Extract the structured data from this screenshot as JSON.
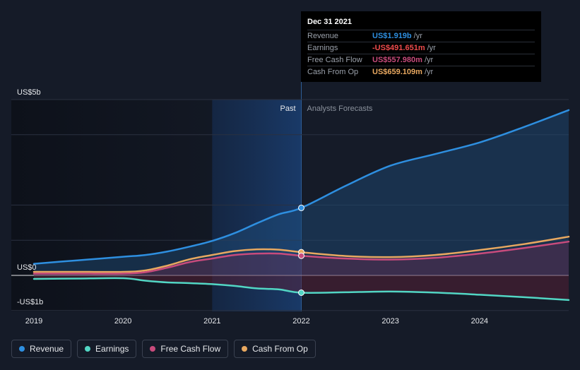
{
  "tooltip": {
    "date": "Dec 31 2021",
    "rows": [
      {
        "name": "Revenue",
        "value": "US$1.919b",
        "unit": "/yr",
        "color": "#2e8fe0"
      },
      {
        "name": "Earnings",
        "value": "-US$491.651m",
        "unit": "/yr",
        "color": "#ef4b4b"
      },
      {
        "name": "Free Cash Flow",
        "value": "US$557.980m",
        "unit": "/yr",
        "color": "#c84b7c"
      },
      {
        "name": "Cash From Op",
        "value": "US$659.109m",
        "unit": "/yr",
        "color": "#e8a860"
      }
    ]
  },
  "legend": [
    {
      "name": "Revenue",
      "color": "#2e8fe0"
    },
    {
      "name": "Earnings",
      "color": "#52d6c4"
    },
    {
      "name": "Free Cash Flow",
      "color": "#c84b7c"
    },
    {
      "name": "Cash From Op",
      "color": "#e8a860"
    }
  ],
  "chart_data": {
    "type": "line",
    "y_unit": "USD billions",
    "ylim": [
      -1,
      5
    ],
    "xlim": [
      2019,
      2025
    ],
    "y_tick_labels": [
      {
        "value": 5,
        "label": "US$5b"
      },
      {
        "value": 0,
        "label": "US$0"
      },
      {
        "value": -1,
        "label": "-US$1b"
      }
    ],
    "x_tick_labels": [
      "2019",
      "2020",
      "2021",
      "2022",
      "2023",
      "2024"
    ],
    "x_ticks": [
      2019,
      2020,
      2021,
      2022,
      2023,
      2024
    ],
    "past_label": "Past",
    "forecast_label": "Analysts Forecasts",
    "past_end": 2022,
    "highlight_start": 2021,
    "series": [
      {
        "name": "Revenue",
        "color": "#2e8fe0",
        "area": true,
        "points": [
          [
            2019,
            0.33
          ],
          [
            2019.5,
            0.43
          ],
          [
            2020,
            0.53
          ],
          [
            2020.25,
            0.58
          ],
          [
            2020.5,
            0.68
          ],
          [
            2020.75,
            0.82
          ],
          [
            2021,
            0.98
          ],
          [
            2021.25,
            1.2
          ],
          [
            2021.5,
            1.48
          ],
          [
            2021.75,
            1.74
          ],
          [
            2022,
            1.919
          ],
          [
            2022.5,
            2.55
          ],
          [
            2023,
            3.12
          ],
          [
            2023.5,
            3.45
          ],
          [
            2024,
            3.78
          ],
          [
            2024.5,
            4.22
          ],
          [
            2025,
            4.7
          ]
        ]
      },
      {
        "name": "Cash From Op",
        "color": "#e8a860",
        "area": false,
        "points": [
          [
            2019,
            0.1
          ],
          [
            2019.5,
            0.1
          ],
          [
            2020,
            0.1
          ],
          [
            2020.25,
            0.14
          ],
          [
            2020.5,
            0.28
          ],
          [
            2020.75,
            0.46
          ],
          [
            2021,
            0.58
          ],
          [
            2021.25,
            0.69
          ],
          [
            2021.5,
            0.74
          ],
          [
            2021.75,
            0.73
          ],
          [
            2022,
            0.659
          ],
          [
            2022.5,
            0.55
          ],
          [
            2023,
            0.52
          ],
          [
            2023.5,
            0.58
          ],
          [
            2024,
            0.72
          ],
          [
            2024.5,
            0.89
          ],
          [
            2025,
            1.1
          ]
        ]
      },
      {
        "name": "Free Cash Flow",
        "color": "#c84b7c",
        "area": true,
        "points": [
          [
            2019,
            0.05
          ],
          [
            2019.5,
            0.05
          ],
          [
            2020,
            0.05
          ],
          [
            2020.25,
            0.09
          ],
          [
            2020.5,
            0.22
          ],
          [
            2020.75,
            0.38
          ],
          [
            2021,
            0.48
          ],
          [
            2021.25,
            0.58
          ],
          [
            2021.5,
            0.62
          ],
          [
            2021.75,
            0.62
          ],
          [
            2022,
            0.558
          ],
          [
            2022.5,
            0.48
          ],
          [
            2023,
            0.45
          ],
          [
            2023.5,
            0.5
          ],
          [
            2024,
            0.62
          ],
          [
            2024.5,
            0.78
          ],
          [
            2025,
            0.96
          ]
        ]
      },
      {
        "name": "Earnings",
        "color": "#52d6c4",
        "area": true,
        "points": [
          [
            2019,
            -0.1
          ],
          [
            2019.5,
            -0.09
          ],
          [
            2020,
            -0.08
          ],
          [
            2020.25,
            -0.15
          ],
          [
            2020.5,
            -0.2
          ],
          [
            2020.75,
            -0.22
          ],
          [
            2021,
            -0.25
          ],
          [
            2021.25,
            -0.3
          ],
          [
            2021.5,
            -0.37
          ],
          [
            2021.75,
            -0.4
          ],
          [
            2022,
            -0.492
          ],
          [
            2022.5,
            -0.48
          ],
          [
            2023,
            -0.46
          ],
          [
            2023.5,
            -0.49
          ],
          [
            2024,
            -0.55
          ],
          [
            2024.5,
            -0.62
          ],
          [
            2025,
            -0.7
          ]
        ]
      }
    ],
    "markers": [
      {
        "series": "Revenue",
        "x": 2022,
        "y": 1.919
      },
      {
        "series": "Cash From Op",
        "x": 2022,
        "y": 0.659
      },
      {
        "series": "Free Cash Flow",
        "x": 2022,
        "y": 0.558
      },
      {
        "series": "Earnings",
        "x": 2022,
        "y": -0.492
      }
    ]
  }
}
